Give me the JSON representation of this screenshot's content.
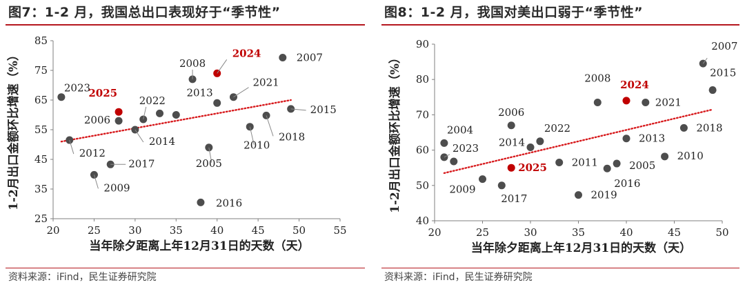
{
  "charts": [
    {
      "title": "图7：1-2 月，我国总出口表现好于“季节性”",
      "source": "资料来源：iFind，民生证券研究院",
      "chart_data": {
        "type": "scatter",
        "xlabel": "当年除夕距离上年12月31日的天数（天）",
        "ylabel": "1-2月出口金额环比增速（%）",
        "xlim": [
          20,
          55
        ],
        "ylim": [
          25,
          85
        ],
        "xticks": [
          20,
          25,
          30,
          35,
          40,
          45,
          50,
          55
        ],
        "yticks": [
          25,
          35,
          45,
          55,
          65,
          75,
          85
        ],
        "grid": false,
        "trendline": {
          "style": "dotted",
          "color": "#d7191c",
          "x": [
            21,
            49
          ],
          "y": [
            51,
            65
          ]
        },
        "points": [
          {
            "label": "2023",
            "x": 21,
            "y": 66
          },
          {
            "label": "2012",
            "x": 22,
            "y": 51.5
          },
          {
            "label": "2009",
            "x": 25,
            "y": 39.8
          },
          {
            "label": "2017",
            "x": 27,
            "y": 43.3
          },
          {
            "label": "2006",
            "x": 28,
            "y": 58
          },
          {
            "label": "2025",
            "x": 28,
            "y": 61
          },
          {
            "label": "2014",
            "x": 30,
            "y": 55
          },
          {
            "label": "2022",
            "x": 31,
            "y": 58.5
          },
          {
            "label": "",
            "x": 33,
            "y": 60.5
          },
          {
            "label": "",
            "x": 35,
            "y": 60
          },
          {
            "label": "2008",
            "x": 37,
            "y": 72
          },
          {
            "label": "2016",
            "x": 38,
            "y": 30.5
          },
          {
            "label": "2005",
            "x": 39,
            "y": 49
          },
          {
            "label": "2013",
            "x": 40,
            "y": 64
          },
          {
            "label": "2024",
            "x": 40,
            "y": 74
          },
          {
            "label": "2021",
            "x": 42,
            "y": 66
          },
          {
            "label": "2010",
            "x": 44,
            "y": 56
          },
          {
            "label": "2018",
            "x": 46,
            "y": 59.8
          },
          {
            "label": "2007",
            "x": 48,
            "y": 79.3
          },
          {
            "label": "2015",
            "x": 49,
            "y": 62
          }
        ]
      }
    },
    {
      "title": "图8：1-2 月，我国对美出口弱于“季节性”",
      "source": "资料来源：iFind，民生证券研究院",
      "chart_data": {
        "type": "scatter",
        "xlabel": "当年除夕距离上年12月31日的天数（天）",
        "ylabel": "1-2月出口金额环比增速（%）",
        "xlim": [
          20,
          50
        ],
        "ylim": [
          40,
          90
        ],
        "xticks": [
          20,
          25,
          30,
          35,
          40,
          45,
          50
        ],
        "yticks": [
          40,
          50,
          60,
          70,
          80,
          90
        ],
        "grid": false,
        "trendline": {
          "style": "dotted",
          "color": "#d7191c",
          "x": [
            21,
            49
          ],
          "y": [
            53.5,
            71.5
          ]
        },
        "points": [
          {
            "label": "2004",
            "x": 21,
            "y": 62
          },
          {
            "label": "2023",
            "x": 21,
            "y": 58
          },
          {
            "label": "",
            "x": 22,
            "y": 56.8
          },
          {
            "label": "2009",
            "x": 25,
            "y": 51.8
          },
          {
            "label": "2017",
            "x": 27,
            "y": 50
          },
          {
            "label": "2006",
            "x": 28,
            "y": 67
          },
          {
            "label": "2025",
            "x": 28,
            "y": 55
          },
          {
            "label": "2014",
            "x": 30,
            "y": 60.8
          },
          {
            "label": "2022",
            "x": 31,
            "y": 62.5
          },
          {
            "label": "2011",
            "x": 33,
            "y": 56.5
          },
          {
            "label": "2019",
            "x": 35,
            "y": 47.3
          },
          {
            "label": "2008",
            "x": 37,
            "y": 73.5
          },
          {
            "label": "2016",
            "x": 38,
            "y": 54.8
          },
          {
            "label": "2005",
            "x": 39,
            "y": 56.2
          },
          {
            "label": "2013",
            "x": 40,
            "y": 63.3
          },
          {
            "label": "2024",
            "x": 40,
            "y": 74
          },
          {
            "label": "2021",
            "x": 42,
            "y": 73.5
          },
          {
            "label": "2010",
            "x": 44,
            "y": 58.2
          },
          {
            "label": "2018",
            "x": 46,
            "y": 66.3
          },
          {
            "label": "2007",
            "x": 48,
            "y": 84.5
          },
          {
            "label": "2015",
            "x": 49,
            "y": 77
          }
        ]
      }
    }
  ],
  "colors": {
    "point": "#4d4d4d",
    "highlight": "#c00000",
    "trend": "#d7191c",
    "axis": "#7f7f7f",
    "rule": "#b5161d"
  },
  "highlight_labels": [
    "2024",
    "2025"
  ]
}
